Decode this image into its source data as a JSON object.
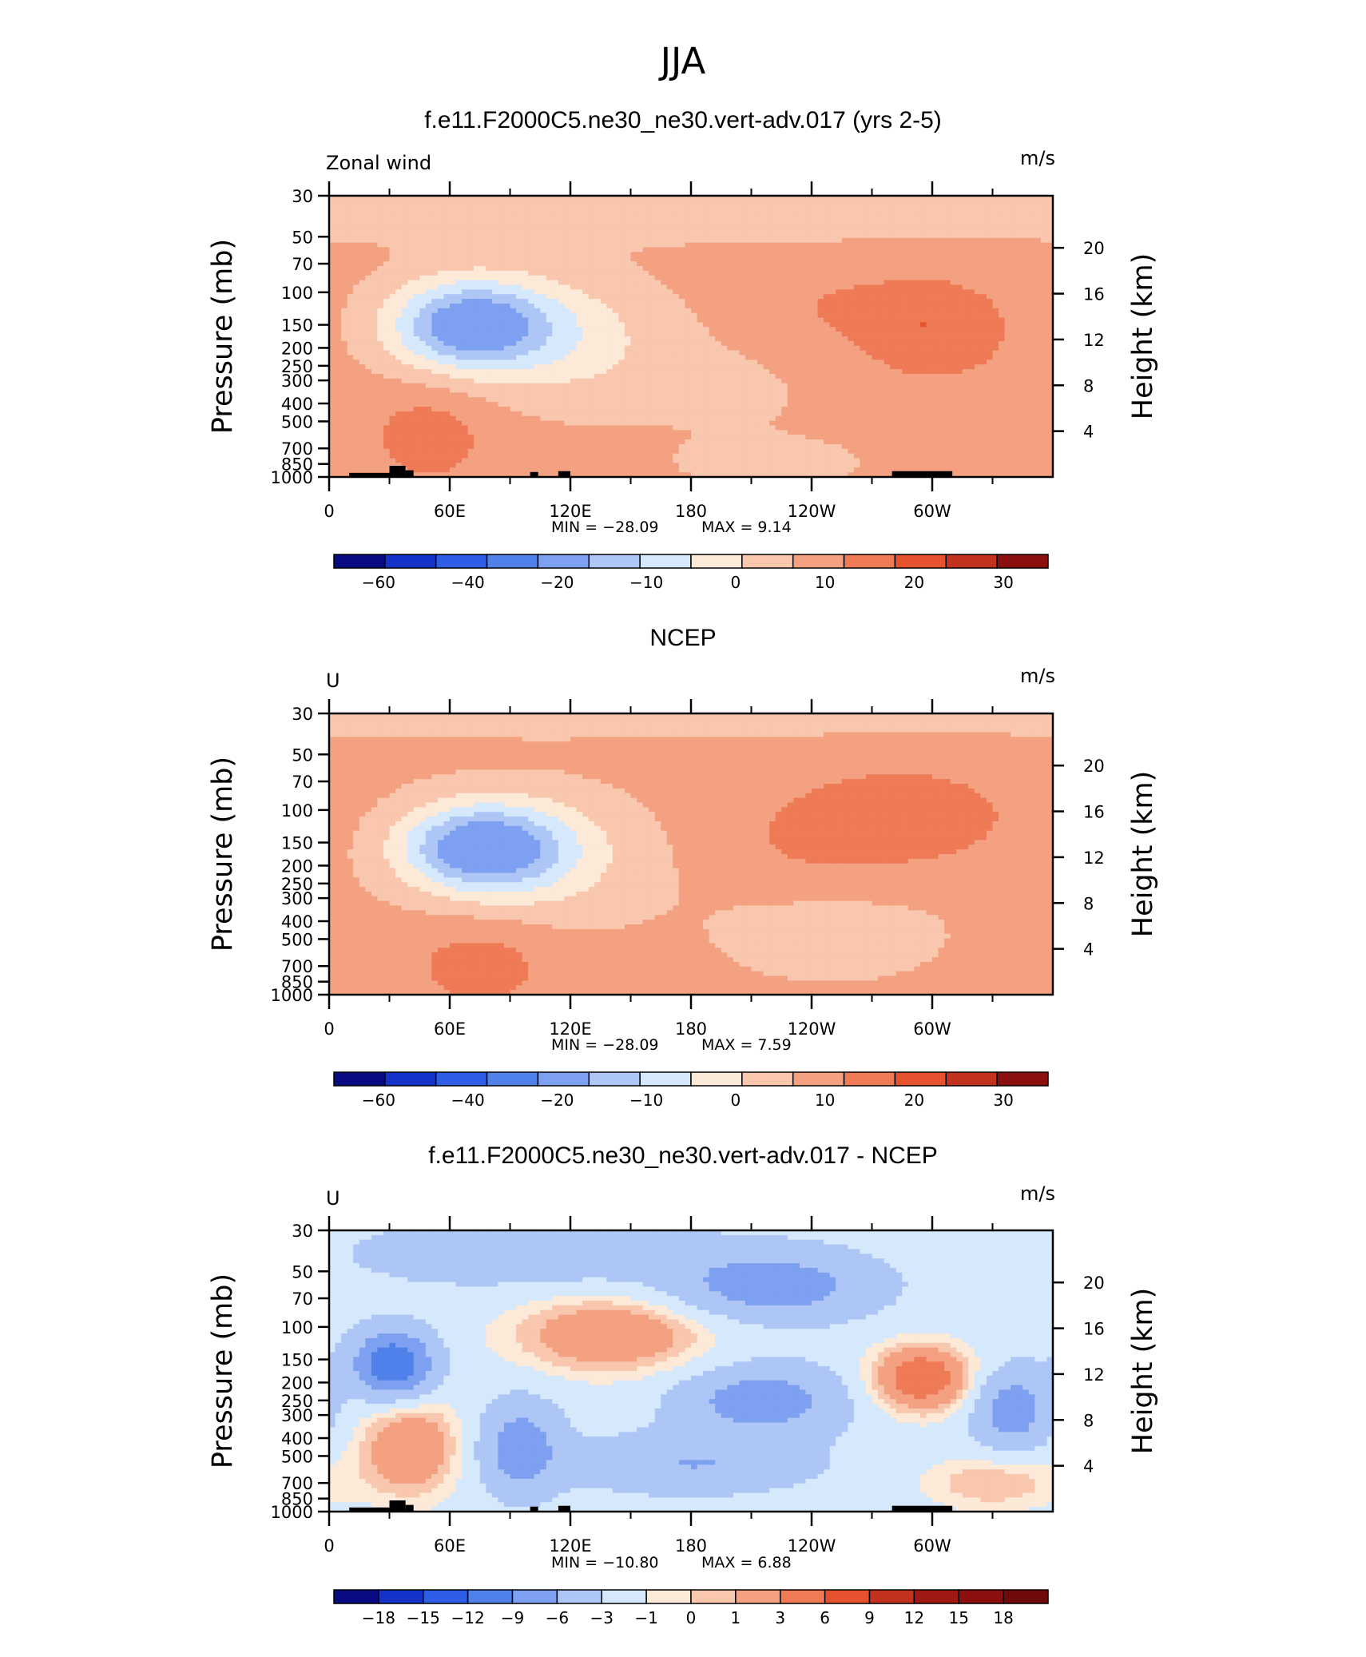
{
  "figure_title": "JJA",
  "left_axis_label": "Pressure (mb)",
  "right_axis_label": "Height (km)",
  "units": "m/s",
  "chart_data": [
    {
      "type": "heatmap",
      "title": "f.e11.F2000C5.ne30_ne30.vert-adv.017 (yrs 2-5)",
      "variable": "Zonal wind",
      "units": "m/s",
      "min_label": "MIN =  −28.09",
      "max_label": "MAX =    9.14",
      "x_ticks": [
        "0",
        "60E",
        "120E",
        "180",
        "120W",
        "60W"
      ],
      "x_tick_lon": [
        0,
        60,
        120,
        180,
        240,
        300
      ],
      "xlim": [
        0,
        360
      ],
      "y_ticks": [
        "30",
        "50",
        "70",
        "100",
        "150",
        "200",
        "250",
        "300",
        "400",
        "500",
        "700",
        "850",
        "1000"
      ],
      "y_tick_p": [
        30,
        50,
        70,
        100,
        150,
        200,
        250,
        300,
        400,
        500,
        700,
        850,
        1000
      ],
      "ylim": [
        1000,
        30
      ],
      "y_scale": "log",
      "height_ticks": [
        "4",
        "8",
        "12",
        "16",
        "20"
      ],
      "height_tick_km": [
        4,
        8,
        12,
        16,
        20
      ],
      "colorbar_labels": [
        "−60",
        "−40",
        "−20",
        "−10",
        "0",
        "10",
        "20",
        "30"
      ],
      "features": [
        {
          "lon": 70,
          "p": 150,
          "value": -28
        },
        {
          "lon": 300,
          "p": 160,
          "value": 9
        },
        {
          "lon": 50,
          "p": 600,
          "value": 6
        }
      ]
    },
    {
      "type": "heatmap",
      "title": "NCEP",
      "variable": "U",
      "units": "m/s",
      "min_label": "MIN =  −28.09",
      "max_label": "MAX =    7.59",
      "x_ticks": [
        "0",
        "60E",
        "120E",
        "180",
        "120W",
        "60W"
      ],
      "x_tick_lon": [
        0,
        60,
        120,
        180,
        240,
        300
      ],
      "xlim": [
        0,
        360
      ],
      "y_ticks": [
        "30",
        "50",
        "70",
        "100",
        "150",
        "200",
        "250",
        "300",
        "400",
        "500",
        "700",
        "850",
        "1000"
      ],
      "y_tick_p": [
        30,
        50,
        70,
        100,
        150,
        200,
        250,
        300,
        400,
        500,
        700,
        850,
        1000
      ],
      "ylim": [
        1000,
        30
      ],
      "y_scale": "log",
      "height_ticks": [
        "4",
        "8",
        "12",
        "16",
        "20"
      ],
      "height_tick_km": [
        4,
        8,
        12,
        16,
        20
      ],
      "colorbar_labels": [
        "−60",
        "−40",
        "−20",
        "−10",
        "0",
        "10",
        "20",
        "30"
      ],
      "features": [
        {
          "lon": 75,
          "p": 160,
          "value": -28
        },
        {
          "lon": 285,
          "p": 110,
          "value": 7
        },
        {
          "lon": 75,
          "p": 700,
          "value": 6
        }
      ]
    },
    {
      "type": "heatmap",
      "title": "f.e11.F2000C5.ne30_ne30.vert-adv.017 - NCEP",
      "variable": "U",
      "units": "m/s",
      "min_label": "MIN =  −10.80",
      "max_label": "MAX =    6.88",
      "x_ticks": [
        "0",
        "60E",
        "120E",
        "180",
        "120W",
        "60W"
      ],
      "x_tick_lon": [
        0,
        60,
        120,
        180,
        240,
        300
      ],
      "xlim": [
        0,
        360
      ],
      "y_ticks": [
        "30",
        "50",
        "70",
        "100",
        "150",
        "200",
        "250",
        "300",
        "400",
        "500",
        "700",
        "850",
        "1000"
      ],
      "y_tick_p": [
        30,
        50,
        70,
        100,
        150,
        200,
        250,
        300,
        400,
        500,
        700,
        850,
        1000
      ],
      "ylim": [
        1000,
        30
      ],
      "y_scale": "log",
      "height_ticks": [
        "4",
        "8",
        "12",
        "16",
        "20"
      ],
      "height_tick_km": [
        4,
        8,
        12,
        16,
        20
      ],
      "colorbar_labels": [
        "−18",
        "−15",
        "−12",
        "−9",
        "−6",
        "−3",
        "−1",
        "0",
        "1",
        "3",
        "6",
        "9",
        "12",
        "15",
        "18"
      ],
      "features": [
        {
          "lon": 32,
          "p": 160,
          "value": -10
        },
        {
          "lon": 295,
          "p": 190,
          "value": 7
        },
        {
          "lon": 140,
          "p": 110,
          "value": 5
        },
        {
          "lon": 40,
          "p": 450,
          "value": 5
        },
        {
          "lon": 220,
          "p": 60,
          "value": -6
        }
      ]
    }
  ],
  "colors": {
    "palette": [
      "#0a0a82",
      "#1432c8",
      "#2e5ee6",
      "#5080ea",
      "#7ea0f0",
      "#adc6f5",
      "#d6e8fb",
      "#fde9d8",
      "#f8c7ae",
      "#f4a182",
      "#ee7a56",
      "#e5532e",
      "#c2321c",
      "#8c0f0f"
    ],
    "palette_diff": [
      "#0a0a82",
      "#1432c8",
      "#2e5ee6",
      "#5080ea",
      "#7ea0f0",
      "#adc6f5",
      "#d6e8fb",
      "#fde9d8",
      "#f8c7ae",
      "#f4a182",
      "#ee7a56",
      "#e5532e",
      "#c2321c",
      "#a01a14",
      "#8c0f0f",
      "#6e0a0a"
    ],
    "topography": "#000000"
  }
}
